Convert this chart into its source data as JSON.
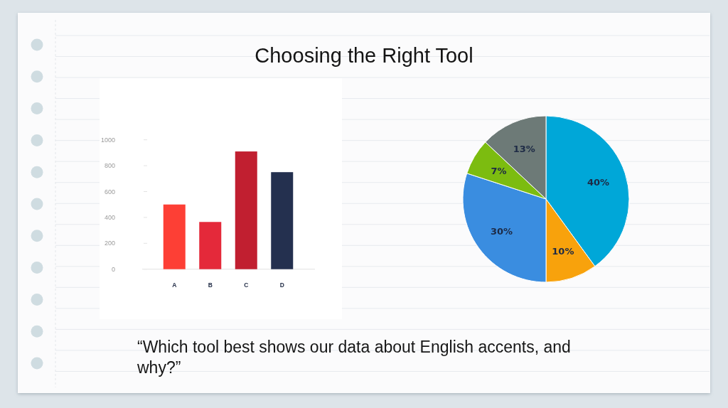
{
  "chart_data": [
    {
      "type": "bar",
      "title": "Choosing the Right Tool",
      "categories": [
        "A",
        "B",
        "C",
        "D"
      ],
      "values": [
        500,
        365,
        910,
        750
      ],
      "colors": [
        "#fd3f35",
        "#e4293a",
        "#c11f30",
        "#24304f"
      ],
      "ylim": [
        0,
        1000
      ],
      "yticks": [
        0,
        200,
        400,
        600,
        800,
        1000
      ],
      "annotations": [
        "“Which tool best shows our data about English accents, and why?”"
      ]
    },
    {
      "type": "pie",
      "categories": [
        null,
        null,
        null,
        null,
        null
      ],
      "values": [
        40,
        10,
        30,
        7,
        13
      ],
      "colors": [
        "#00a7d8",
        "#f8a20c",
        "#3a8de0",
        "#7cbc10",
        "#6d7a77"
      ],
      "value_labels": [
        "40%",
        "10%",
        "30%",
        "7%",
        "13%"
      ]
    }
  ]
}
